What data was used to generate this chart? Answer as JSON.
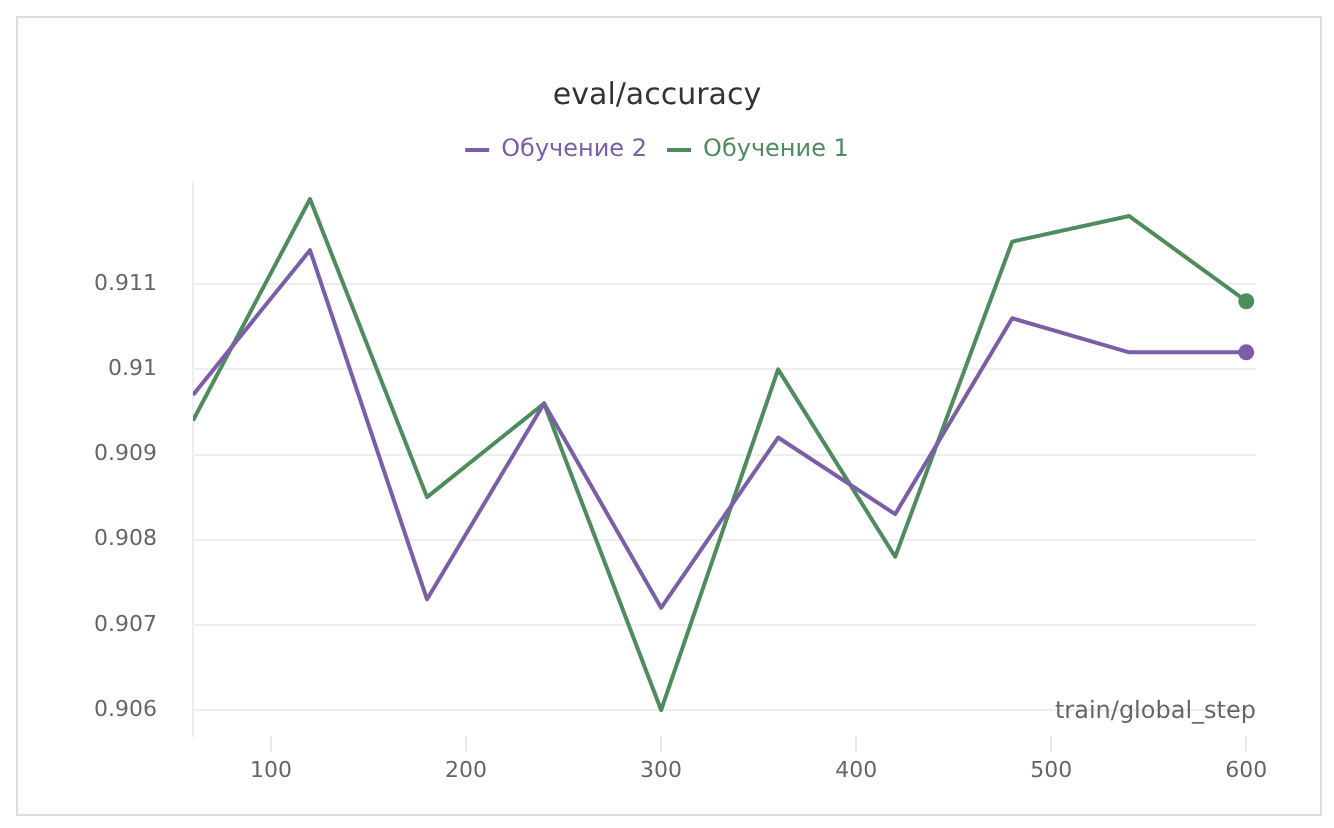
{
  "chart_data": {
    "type": "line",
    "title": "eval/accuracy",
    "xlabel": "train/global_step",
    "x": [
      60,
      120,
      180,
      240,
      300,
      360,
      420,
      480,
      540,
      600
    ],
    "series": [
      {
        "name": "Обучение 2",
        "color": "#7b5ea7",
        "values": [
          0.9097,
          0.9114,
          0.9073,
          0.9096,
          0.9072,
          0.9092,
          0.9083,
          0.9106,
          0.9102,
          0.9102
        ]
      },
      {
        "name": "Обучение 1",
        "color": "#4e8c5e",
        "values": [
          0.9094,
          0.912,
          0.9085,
          0.9096,
          0.906,
          0.91,
          0.9078,
          0.9115,
          0.9118,
          0.9108
        ]
      }
    ],
    "xlim": [
      60,
      605
    ],
    "xticks": [
      100,
      200,
      300,
      400,
      500,
      600
    ],
    "ylim": [
      0.9057,
      0.9122
    ],
    "yticks": [
      0.906,
      0.907,
      0.908,
      0.909,
      0.91,
      0.911
    ],
    "grid": "y",
    "legend": "top",
    "line_style": "solid"
  }
}
